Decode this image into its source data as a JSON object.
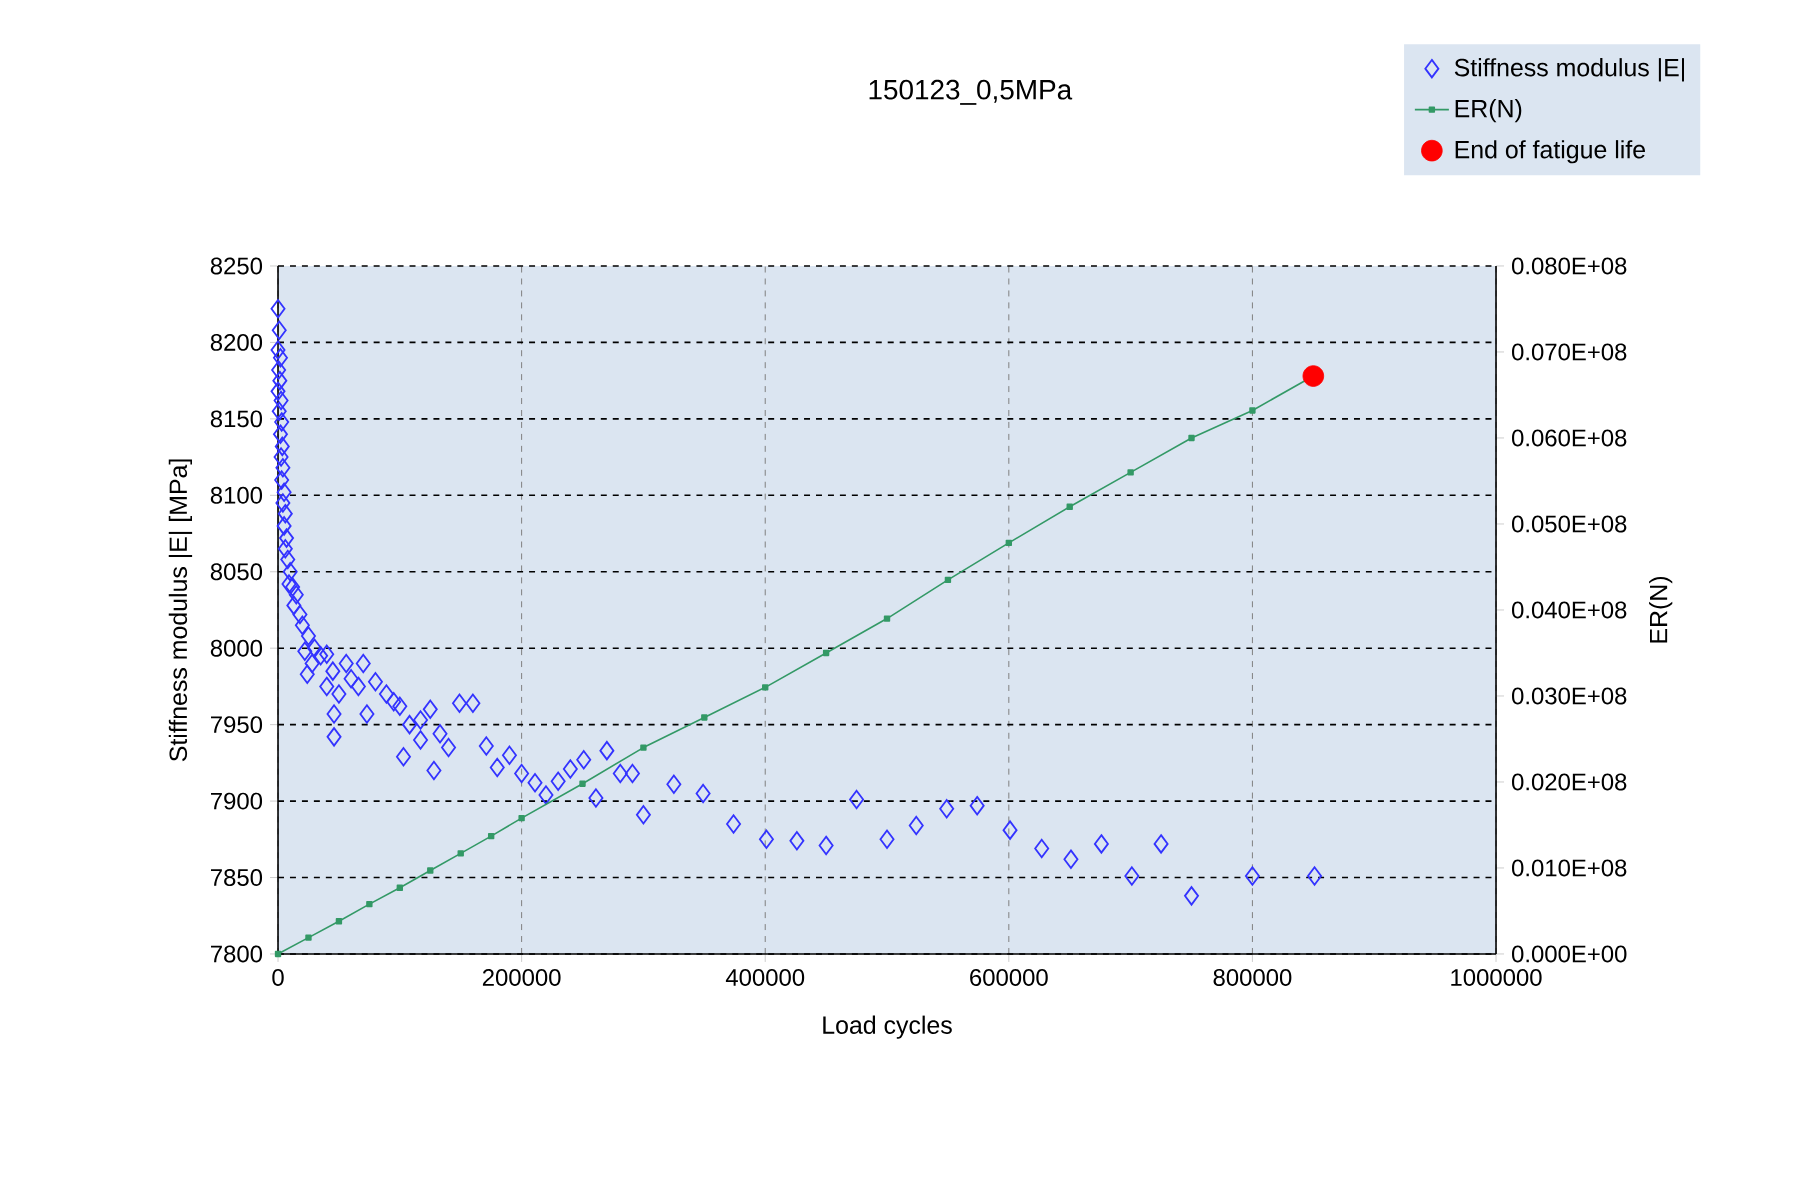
{
  "chart_data": {
    "type": "scatter",
    "title": "150123_0,5MPa",
    "xlabel": "Load cycles",
    "ylabel": "Stiffness modulus |E| [MPa]",
    "y2label": "ER(N)",
    "xlim": [
      0,
      1000000
    ],
    "xticks": [
      0,
      200000,
      400000,
      600000,
      800000,
      1000000
    ],
    "ylim": [
      7800,
      8250
    ],
    "yticks": [
      7800,
      7850,
      7900,
      7950,
      8000,
      8050,
      8100,
      8150,
      8200,
      8250
    ],
    "y2lim": [
      0,
      8000000
    ],
    "y2ticks": [
      {
        "value": 0,
        "label": "0.000E+00"
      },
      {
        "value": 1000000,
        "label": "0.010E+08"
      },
      {
        "value": 2000000,
        "label": "0.020E+08"
      },
      {
        "value": 3000000,
        "label": "0.030E+08"
      },
      {
        "value": 4000000,
        "label": "0.040E+08"
      },
      {
        "value": 5000000,
        "label": "0.050E+08"
      },
      {
        "value": 6000000,
        "label": "0.060E+08"
      },
      {
        "value": 7000000,
        "label": "0.070E+08"
      },
      {
        "value": 8000000,
        "label": "0.080E+08"
      }
    ],
    "grid": true,
    "legend": "top right",
    "series": [
      {
        "name": "Stiffness modulus |E|",
        "marker": "diamond",
        "color": "#3333ff",
        "x": [
          0,
          1000,
          0,
          2000,
          500,
          1500,
          0,
          2500,
          1000,
          3000,
          2000,
          3500,
          2500,
          4000,
          3000,
          5000,
          4000,
          6000,
          5000,
          7000,
          6000,
          8000,
          10000,
          9000,
          12000,
          15000,
          13000,
          18000,
          20000,
          25000,
          22000,
          30000,
          28000,
          35000,
          24000,
          40000,
          45000,
          40000,
          56000,
          50000,
          46000,
          60000,
          70000,
          66000,
          80000,
          73000,
          89000,
          95000,
          100000,
          46000,
          108000,
          117000,
          117000,
          103000,
          125000,
          133000,
          128000,
          140000,
          149000,
          160000,
          171000,
          180000,
          190000,
          200000,
          211000,
          220000,
          230000,
          240000,
          251000,
          261000,
          270000,
          281000,
          291000,
          300000,
          325000,
          349000,
          374000,
          401000,
          426000,
          450000,
          475000,
          500000,
          524000,
          549000,
          574000,
          601000,
          627000,
          651000,
          676000,
          701000,
          725000,
          750000,
          800000,
          851000
        ],
        "values": [
          8222,
          8208,
          8195,
          8190,
          8182,
          8175,
          8168,
          8162,
          8155,
          8148,
          8140,
          8132,
          8125,
          8118,
          8110,
          8102,
          8095,
          8088,
          8080,
          8072,
          8065,
          8058,
          8050,
          8042,
          8040,
          8035,
          8028,
          8022,
          8015,
          8008,
          7998,
          8000,
          7990,
          7995,
          7983,
          7996,
          7985,
          7975,
          7990,
          7970,
          7957,
          7980,
          7990,
          7975,
          7978,
          7957,
          7970,
          7965,
          7962,
          7942,
          7950,
          7953,
          7940,
          7929,
          7960,
          7944,
          7920,
          7935,
          7964,
          7964,
          7936,
          7922,
          7930,
          7918,
          7912,
          7904,
          7913,
          7921,
          7927,
          7902,
          7933,
          7918,
          7918,
          7891,
          7911,
          7905,
          7885,
          7875,
          7874,
          7871,
          7901,
          7875,
          7884,
          7895,
          7897,
          7881,
          7869,
          7862,
          7872,
          7851,
          7872,
          7838,
          7851,
          7851
        ]
      },
      {
        "name": "ER(N)",
        "type": "line",
        "axis": "y2",
        "marker": "square",
        "line_style": "solid",
        "color": "#339966",
        "x": [
          0,
          25000,
          50000,
          75000,
          100000,
          125000,
          150000,
          175000,
          200000,
          250000,
          300000,
          350000,
          400000,
          450000,
          500000,
          550000,
          600000,
          650000,
          700000,
          750000,
          800000,
          850000
        ],
        "values": [
          0,
          190000,
          380000,
          580000,
          770000,
          970000,
          1170000,
          1370000,
          1580000,
          1980000,
          2400000,
          2750000,
          3100000,
          3500000,
          3900000,
          4350000,
          4780000,
          5200000,
          5600000,
          6000000,
          6320000,
          6720000
        ]
      },
      {
        "name": "End of fatigue life",
        "type": "scatter",
        "axis": "y2",
        "marker": "circle",
        "color": "#ff0000",
        "x": [
          850000
        ],
        "values": [
          6720000
        ]
      }
    ]
  }
}
